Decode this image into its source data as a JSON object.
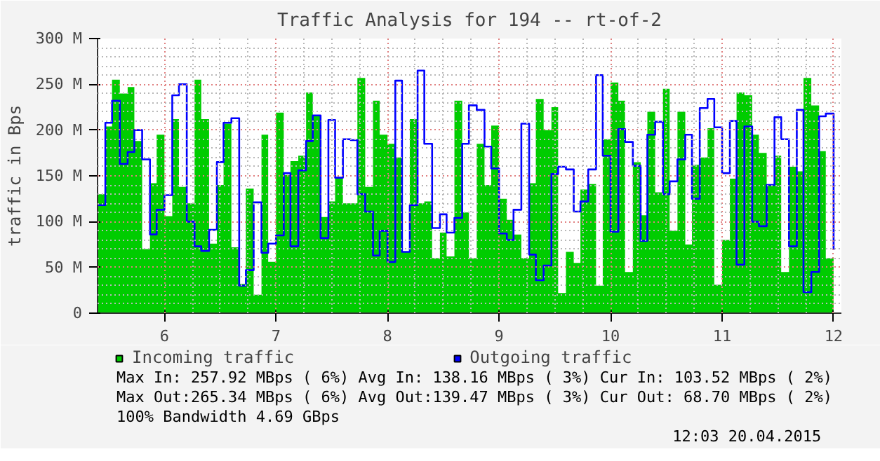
{
  "chart_data": {
    "type": "area",
    "title": "Traffic Analysis for 194 -- rt-of-2",
    "ylabel": "traffic in Bps",
    "x": [
      5.4,
      5.47,
      5.53,
      5.6,
      5.67,
      5.73,
      5.8,
      5.87,
      5.93,
      6.0,
      6.07,
      6.13,
      6.2,
      6.27,
      6.33,
      6.4,
      6.47,
      6.53,
      6.6,
      6.67,
      6.73,
      6.8,
      6.87,
      6.93,
      7.0,
      7.07,
      7.13,
      7.2,
      7.27,
      7.33,
      7.4,
      7.47,
      7.53,
      7.6,
      7.67,
      7.73,
      7.8,
      7.87,
      7.93,
      8.0,
      8.07,
      8.13,
      8.2,
      8.27,
      8.33,
      8.4,
      8.47,
      8.53,
      8.6,
      8.67,
      8.73,
      8.8,
      8.87,
      8.93,
      9.0,
      9.07,
      9.13,
      9.2,
      9.27,
      9.33,
      9.4,
      9.47,
      9.53,
      9.6,
      9.67,
      9.73,
      9.8,
      9.87,
      9.93,
      10.0,
      10.07,
      10.13,
      10.2,
      10.27,
      10.33,
      10.4,
      10.47,
      10.53,
      10.6,
      10.67,
      10.73,
      10.8,
      10.87,
      10.93,
      11.0,
      11.07,
      11.13,
      11.2,
      11.27,
      11.33,
      11.4,
      11.47,
      11.53,
      11.6,
      11.67,
      11.73,
      11.8,
      11.87,
      11.93,
      12.0
    ],
    "series": [
      {
        "name": "Incoming traffic",
        "color": "#00cc00",
        "values": [
          130,
          204,
          255,
          240,
          247,
          188,
          70,
          142,
          195,
          106,
          212,
          138,
          120,
          255,
          212,
          76,
          140,
          207,
          72,
          32,
          136,
          20,
          195,
          56,
          219,
          151,
          166,
          172,
          241,
          215,
          105,
          122,
          147,
          120,
          120,
          257,
          138,
          232,
          195,
          185,
          170,
          67,
          212,
          120,
          122,
          60,
          88,
          62,
          232,
          110,
          60,
          185,
          140,
          205,
          125,
          102,
          86,
          60,
          142,
          234,
          200,
          225,
          22,
          67,
          55,
          135,
          141,
          30,
          190,
          252,
          232,
          45,
          165,
          107,
          220,
          132,
          245,
          90,
          220,
          75,
          162,
          170,
          202,
          31,
          80,
          147,
          241,
          238,
          195,
          175,
          140,
          172,
          45,
          160,
          155,
          257,
          227,
          177,
          60,
          104
        ]
      },
      {
        "name": "Outgoing traffic",
        "type": "step",
        "color": "#0000ff",
        "values": [
          118,
          208,
          232,
          163,
          176,
          200,
          168,
          86,
          113,
          129,
          238,
          250,
          100,
          73,
          68,
          91,
          165,
          208,
          213,
          30,
          47,
          121,
          66,
          76,
          85,
          153,
          73,
          156,
          188,
          216,
          82,
          211,
          148,
          190,
          189,
          130,
          111,
          63,
          90,
          56,
          254,
          67,
          118,
          265,
          185,
          93,
          108,
          88,
          104,
          185,
          227,
          222,
          182,
          158,
          87,
          80,
          113,
          207,
          64,
          36,
          52,
          152,
          160,
          157,
          111,
          122,
          157,
          260,
          172,
          89,
          201,
          187,
          161,
          79,
          195,
          209,
          130,
          144,
          168,
          195,
          125,
          224,
          234,
          203,
          153,
          210,
          53,
          204,
          100,
          95,
          140,
          214,
          190,
          73,
          222,
          23,
          45,
          215,
          218,
          69
        ]
      }
    ],
    "xlim": [
      5.4,
      12.07
    ],
    "xticks": [
      6,
      7,
      8,
      9,
      10,
      11,
      12
    ],
    "ylim": [
      0,
      300
    ],
    "yticks": [
      0,
      {
        "value": 50,
        "label": "50 M"
      },
      {
        "value": 100,
        "label": "100 M"
      },
      {
        "value": 150,
        "label": "150 M"
      },
      {
        "value": 200,
        "label": "200 M"
      },
      {
        "value": 250,
        "label": "250 M"
      },
      {
        "value": 300,
        "label": "300 M"
      }
    ],
    "grid": true,
    "legend": "bottom",
    "annotations": [
      "Max In: 257.92 MBps ( 6%)  Avg In: 138.16 MBps ( 3%)  Cur In: 103.52 MBps ( 2%)",
      "Max Out:265.34 MBps ( 6%)  Avg Out:139.47 MBps ( 3%)  Cur Out: 68.70 MBps ( 2%)",
      "100% Bandwidth 4.69 GBps",
      "12:03 20.04.2015"
    ]
  }
}
